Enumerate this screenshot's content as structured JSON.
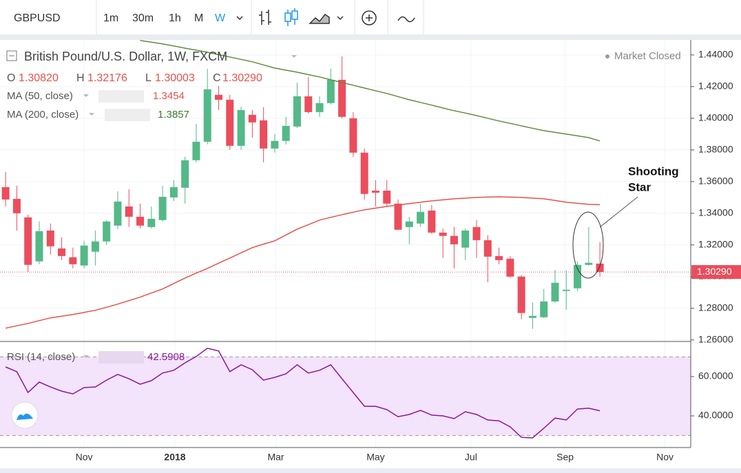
{
  "toolbar": {
    "symbol": "GBPUSD",
    "intervals": [
      "1m",
      "30m",
      "1h",
      "M",
      "W"
    ]
  },
  "chart_data": [
    {
      "type": "candlestick",
      "title": "British Pound/U.S. Dollar, 1W, FXCM",
      "status": "Market Closed",
      "ohlc_legend": [
        {
          "key": "O",
          "value": "1.30820"
        },
        {
          "key": "H",
          "value": "1.32176"
        },
        {
          "key": "L",
          "value": "1.30003"
        },
        {
          "key": "C",
          "value": "1.30290"
        }
      ],
      "open": [
        1.3565,
        1.3491,
        1.3374,
        1.3096,
        1.3291,
        1.3178,
        1.3122,
        1.307,
        1.3157,
        1.3222,
        1.3322,
        1.3443,
        1.3378,
        1.3313,
        1.3357,
        1.35,
        1.3561,
        1.3735,
        1.3852,
        1.4148,
        1.4117,
        1.3826,
        1.4022,
        1.3987,
        1.3809,
        1.3857,
        1.3948,
        1.4139,
        1.4039,
        1.4096,
        1.4243,
        1.4,
        1.3783,
        1.3543,
        1.3543,
        1.3461,
        1.3313,
        1.3335,
        1.3417,
        1.3278,
        1.3257,
        1.3183,
        1.3313,
        1.323,
        1.313,
        1.3113,
        1.3,
        1.2739,
        1.2743,
        1.2843,
        1.2909,
        1.2926,
        1.3074,
        1.3082
      ],
      "high": [
        1.3661,
        1.3574,
        1.3391,
        1.3348,
        1.3335,
        1.3248,
        1.3183,
        1.3226,
        1.3291,
        1.3357,
        1.3539,
        1.3552,
        1.3461,
        1.3443,
        1.3574,
        1.3609,
        1.3757,
        1.3965,
        1.4313,
        1.4204,
        1.4148,
        1.4074,
        1.4052,
        1.407,
        1.39,
        1.4009,
        1.4226,
        1.4261,
        1.4139,
        1.4313,
        1.4391,
        1.4039,
        1.3809,
        1.3609,
        1.3609,
        1.3487,
        1.3378,
        1.3461,
        1.3452,
        1.3304,
        1.3313,
        1.3304,
        1.3357,
        1.3261,
        1.3183,
        1.313,
        1.3009,
        1.2835,
        1.2922,
        1.3043,
        1.3039,
        1.3096,
        1.3313,
        1.32176
      ],
      "low": [
        1.3443,
        1.3291,
        1.303,
        1.3078,
        1.3139,
        1.3104,
        1.3052,
        1.3052,
        1.307,
        1.32,
        1.33,
        1.3313,
        1.3304,
        1.3304,
        1.3348,
        1.3478,
        1.3461,
        1.3722,
        1.3835,
        1.4052,
        1.38,
        1.38,
        1.3878,
        1.3722,
        1.3783,
        1.3835,
        1.3939,
        1.403,
        1.4009,
        1.4087,
        1.4,
        1.3757,
        1.3487,
        1.3443,
        1.3443,
        1.3291,
        1.3204,
        1.3313,
        1.327,
        1.3117,
        1.3052,
        1.3104,
        1.3117,
        1.2965,
        1.3078,
        1.2991,
        1.273,
        1.267,
        1.2739,
        1.2835,
        1.2791,
        1.2909,
        1.307,
        1.30003
      ],
      "close": [
        1.3487,
        1.34,
        1.3074,
        1.3287,
        1.3191,
        1.313,
        1.3078,
        1.3196,
        1.3222,
        1.3348,
        1.3474,
        1.3378,
        1.3322,
        1.3365,
        1.3504,
        1.3565,
        1.3735,
        1.3852,
        1.4183,
        1.4117,
        1.3826,
        1.4052,
        1.3974,
        1.3809,
        1.3857,
        1.3952,
        1.4139,
        1.4039,
        1.4096,
        1.4243,
        1.4009,
        1.3783,
        1.3522,
        1.353,
        1.3461,
        1.3296,
        1.3348,
        1.3409,
        1.3278,
        1.3257,
        1.3204,
        1.3291,
        1.323,
        1.3126,
        1.3104,
        1.3,
        1.277,
        1.2752,
        1.2843,
        1.2961,
        1.2917,
        1.3074,
        1.3087,
        1.3029
      ],
      "close_label": "1.30290",
      "up_color": "#53b987",
      "down_color": "#eb4d5c",
      "series": [
        {
          "name": "MA (50, close)",
          "value_label": "1.3454",
          "color": "#e8514a",
          "values": [
            1.2674,
            1.2689,
            1.2704,
            1.2722,
            1.2739,
            1.275,
            1.2761,
            1.2774,
            1.2787,
            1.2806,
            1.2826,
            1.2848,
            1.287,
            1.2896,
            1.2922,
            1.2956,
            1.2991,
            1.3022,
            1.3052,
            1.3085,
            1.3117,
            1.315,
            1.3183,
            1.3205,
            1.3226,
            1.3263,
            1.33,
            1.3328,
            1.3357,
            1.3374,
            1.3391,
            1.3407,
            1.3422,
            1.3433,
            1.3443,
            1.3452,
            1.3461,
            1.347,
            1.3478,
            1.3485,
            1.3491,
            1.3496,
            1.35,
            1.3502,
            1.3504,
            1.3502,
            1.35,
            1.3496,
            1.3491,
            1.3481,
            1.347,
            1.3463,
            1.3457,
            1.3454
          ]
        },
        {
          "name": "MA (200, close)",
          "value_label": "1.3857",
          "color": "#5c8d3f",
          "values": [
            null,
            null,
            null,
            null,
            null,
            null,
            null,
            null,
            null,
            null,
            null,
            null,
            1.4491,
            1.4481,
            1.447,
            1.4457,
            1.4443,
            1.443,
            1.4417,
            1.4402,
            1.4387,
            1.4372,
            1.4357,
            1.4337,
            1.4317,
            1.4304,
            1.4291,
            1.4276,
            1.4261,
            1.4243,
            1.4226,
            1.4209,
            1.4191,
            1.4174,
            1.4157,
            1.4137,
            1.4117,
            1.41,
            1.4083,
            1.4065,
            1.4048,
            1.4033,
            1.4017,
            1.4,
            1.3983,
            1.3968,
            1.3952,
            1.3937,
            1.3922,
            1.3911,
            1.39,
            1.3889,
            1.3878,
            1.3857
          ]
        }
      ],
      "annotation": [
        "Shooting",
        "Star"
      ],
      "xlim": [
        -0.5,
        61.1
      ],
      "xticks": [
        {
          "value": 7,
          "label": "Nov"
        },
        {
          "value": 15.1,
          "label": "2018"
        },
        {
          "value": 24.1,
          "label": "Mar"
        },
        {
          "value": 33,
          "label": "May"
        },
        {
          "value": 41.5,
          "label": "Jul"
        },
        {
          "value": 49.9,
          "label": "Sep"
        },
        {
          "value": 58.8,
          "label": "Nov"
        }
      ],
      "ylim": [
        1.259,
        1.4495
      ],
      "yticks": [
        {
          "value": 1.26,
          "label": "1.26000"
        },
        {
          "value": 1.28,
          "label": "1.28000"
        },
        {
          "value": 1.3,
          "label": "1.30000"
        },
        {
          "value": 1.32,
          "label": "1.32000"
        },
        {
          "value": 1.34,
          "label": "1.34000"
        },
        {
          "value": 1.36,
          "label": "1.36000"
        },
        {
          "value": 1.38,
          "label": "1.38000"
        },
        {
          "value": 1.4,
          "label": "1.40000"
        },
        {
          "value": 1.42,
          "label": "1.42000"
        },
        {
          "value": 1.44,
          "label": "1.44000"
        }
      ],
      "grid": true
    },
    {
      "type": "line",
      "series": [
        {
          "name": "RSI (14, close)",
          "value_label": "42.5908",
          "color": "#8e1599",
          "values": [
            64.9,
            62.5,
            51.9,
            57.2,
            54.7,
            52.6,
            51.2,
            54.4,
            54.7,
            58.2,
            61.1,
            58.9,
            56.1,
            57.9,
            61.8,
            63.2,
            67.0,
            70.2,
            74.4,
            73.0,
            62.5,
            66.0,
            63.5,
            58.2,
            59.6,
            61.4,
            66.0,
            61.8,
            63.2,
            66.0,
            58.9,
            51.9,
            44.9,
            44.9,
            43.2,
            39.6,
            40.7,
            42.8,
            40.4,
            40.0,
            38.6,
            42.1,
            40.7,
            37.9,
            37.5,
            34.4,
            29.1,
            28.8,
            33.7,
            38.9,
            37.9,
            43.5,
            43.9,
            42.59
          ]
        }
      ],
      "bands": [
        30,
        70
      ],
      "band_color": "#f3e3fb",
      "ylim": [
        23.9,
        77.5
      ],
      "yticks": [
        {
          "value": 40,
          "label": "40.0000"
        },
        {
          "value": 60,
          "label": "60.0000"
        }
      ],
      "grid": true
    }
  ]
}
